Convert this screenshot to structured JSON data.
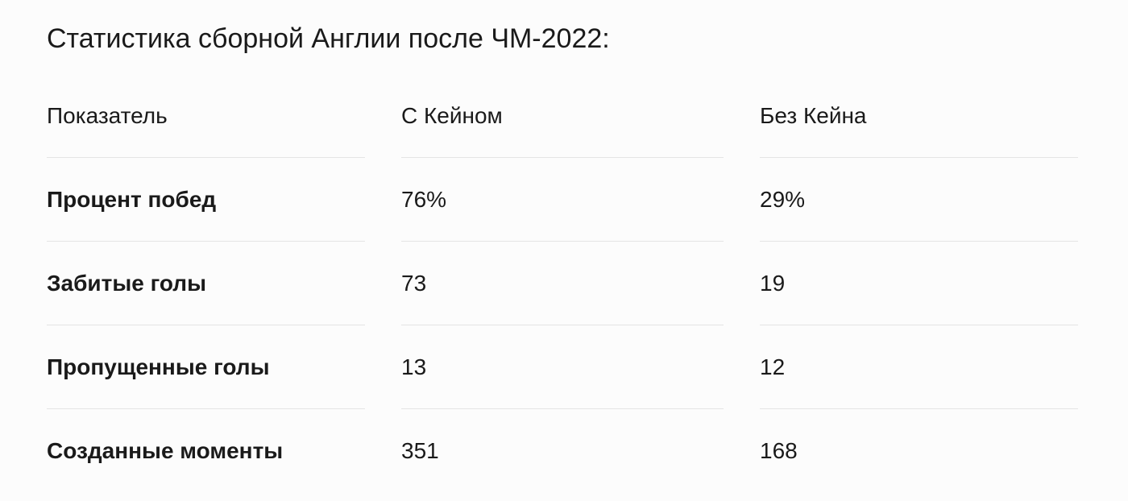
{
  "title": "Статистика сборной Англии после ЧМ-2022:",
  "table": {
    "header": [
      "Показатель",
      "С Кейном",
      "Без Кейна"
    ],
    "rows": [
      [
        "Процент побед",
        "76%",
        "29%"
      ],
      [
        "Забитые голы",
        "73",
        "19"
      ],
      [
        "Пропущенные голы",
        "13",
        "12"
      ],
      [
        "Созданные моменты",
        "351",
        "168"
      ]
    ]
  }
}
